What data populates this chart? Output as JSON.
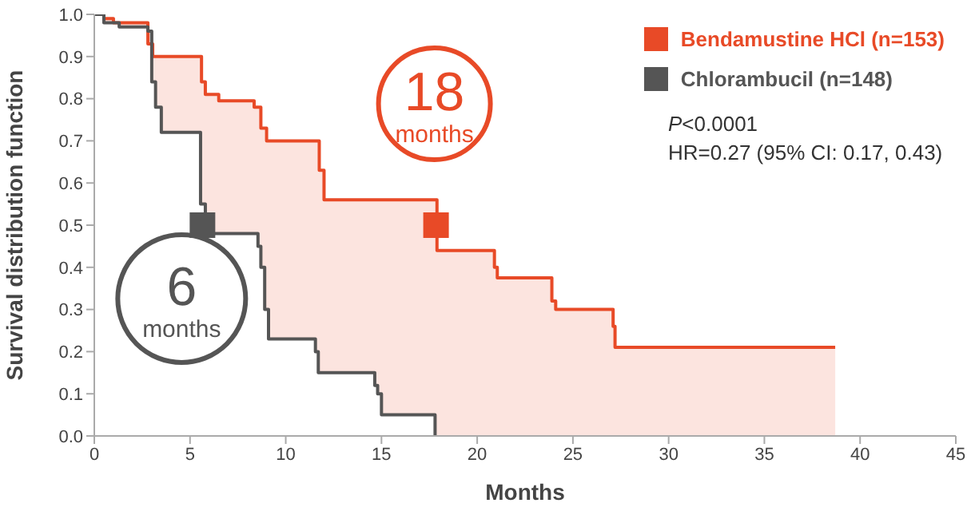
{
  "chart_data": {
    "type": "step",
    "xlabel": "Months",
    "ylabel": "Survival distribution function",
    "xlim": [
      0,
      45
    ],
    "xticks": [
      0,
      5,
      10,
      15,
      20,
      25,
      30,
      35,
      40,
      45
    ],
    "ylim": [
      0,
      1
    ],
    "yticks": [
      {
        "value": 0,
        "label": "0.0"
      },
      0.1,
      0.2,
      0.3,
      0.4,
      0.5,
      0.6,
      0.7,
      0.8,
      0.9,
      {
        "value": 1,
        "label": "1.0"
      }
    ],
    "grid": false,
    "legend": "top right",
    "marker": "none",
    "line_style": "solid",
    "series": [
      {
        "name": "Bendamustine HCl (n=153)",
        "color": "#e84a27",
        "x": [
          0,
          0.5,
          1,
          2.8,
          3.05,
          5.6,
          5.8,
          6.5,
          8.35,
          8.7,
          9,
          11.75,
          12,
          17.9,
          20.9,
          21.05,
          23.9,
          24.1,
          27.1,
          27.2,
          38.7
        ],
        "values": [
          1,
          0.99,
          0.98,
          0.93,
          0.9,
          0.84,
          0.81,
          0.795,
          0.78,
          0.73,
          0.7,
          0.63,
          0.56,
          0.44,
          0.4,
          0.375,
          0.32,
          0.3,
          0.26,
          0.21,
          0.21
        ]
      },
      {
        "name": "Chlorambucil (n=148)",
        "color": "#555555",
        "x": [
          0,
          0.5,
          1.3,
          2.8,
          3,
          3.2,
          3.5,
          5.55,
          5.8,
          6,
          8.55,
          8.7,
          8.9,
          9.1,
          11.55,
          11.7,
          14.65,
          14.8,
          15,
          17.8
        ],
        "values": [
          1,
          0.98,
          0.97,
          0.96,
          0.84,
          0.78,
          0.72,
          0.55,
          0.52,
          0.48,
          0.45,
          0.4,
          0.3,
          0.23,
          0.2,
          0.15,
          0.12,
          0.1,
          0.05,
          0
        ]
      },
      {
        "type": "scatter",
        "marker": "square",
        "color": "#e84a27",
        "x": [
          17.85
        ],
        "values": [
          0.5
        ]
      },
      {
        "type": "scatter",
        "marker": "square",
        "color": "#555555",
        "x": [
          5.65
        ],
        "values": [
          0.5
        ]
      }
    ],
    "annotations": [
      {
        "text": "18 months",
        "x": 17.85,
        "y": 0.5
      },
      {
        "text": "6 months",
        "x": 5.65,
        "y": 0.5
      },
      "P<0.0001",
      "HR=0.27 (95% CI: 0.17, 0.43)"
    ]
  }
}
